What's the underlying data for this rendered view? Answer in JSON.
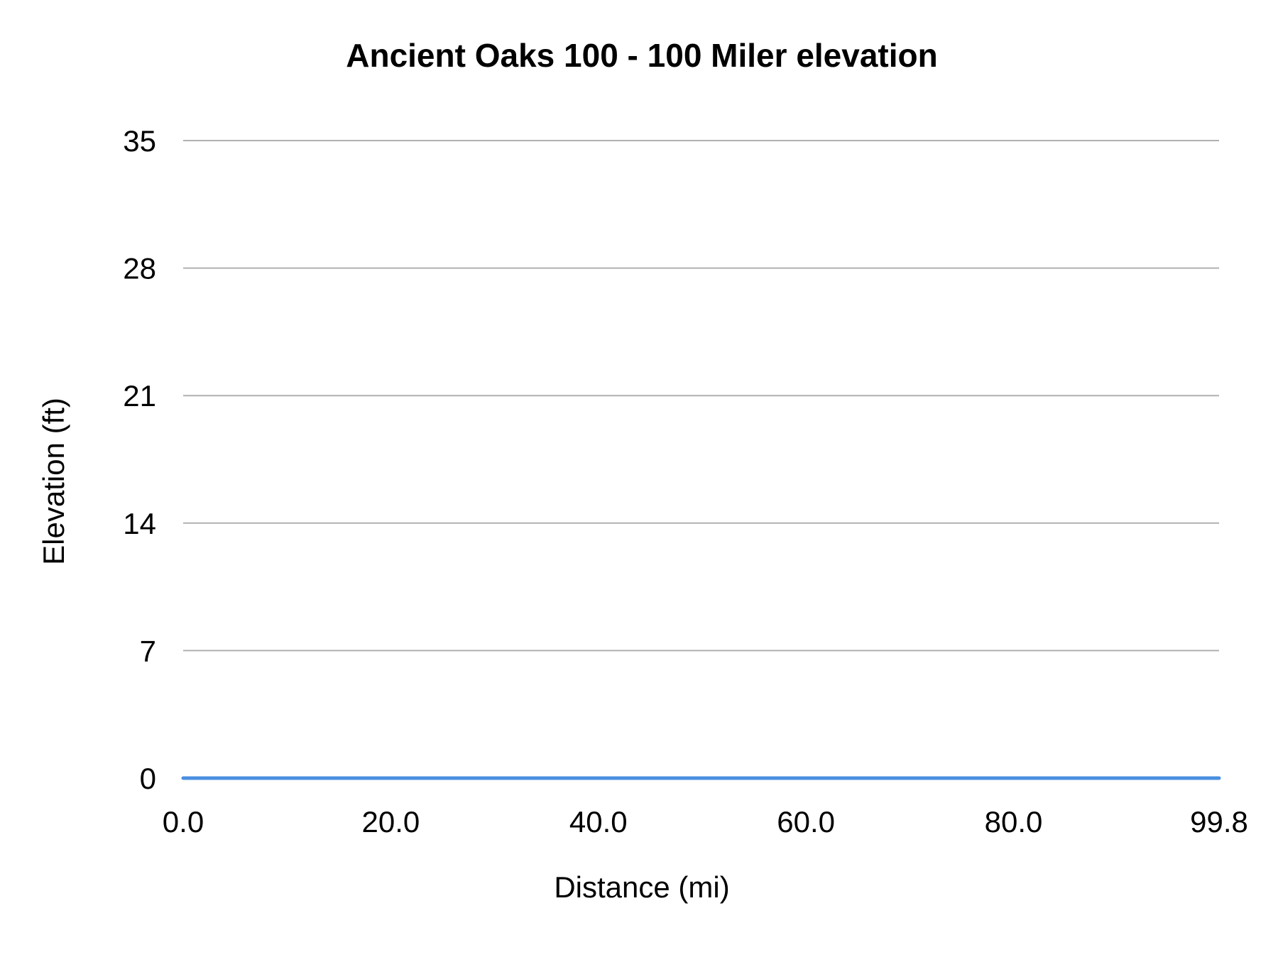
{
  "chart_data": {
    "type": "line",
    "title": "Ancient Oaks 100 - 100 Miler elevation",
    "xlabel": "Distance (mi)",
    "ylabel": "Elevation (ft)",
    "xlim": [
      0,
      99.8
    ],
    "ylim": [
      0,
      35
    ],
    "x_ticks": [
      "0.0",
      "20.0",
      "40.0",
      "60.0",
      "80.0",
      "99.8"
    ],
    "x_tick_values": [
      0,
      20,
      40,
      60,
      80,
      99.8
    ],
    "y_ticks": [
      "0",
      "7",
      "14",
      "21",
      "28",
      "35"
    ],
    "y_tick_values": [
      0,
      7,
      14,
      21,
      28,
      35
    ],
    "grid": true,
    "legend": "none",
    "series": [
      {
        "x": [
          0,
          20,
          40,
          60,
          80,
          99.8
        ],
        "values": [
          0,
          0,
          0,
          0,
          0,
          0
        ],
        "color": "#4a8fdf"
      }
    ],
    "gridline_color": "#b0b0b0"
  }
}
